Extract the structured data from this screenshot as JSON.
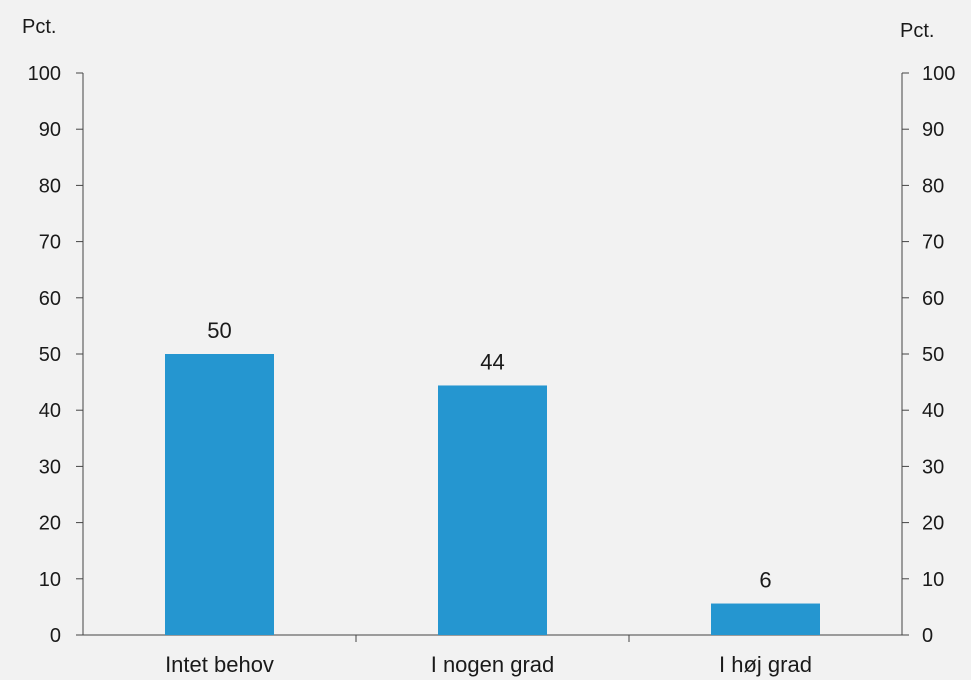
{
  "chart_data": {
    "type": "bar",
    "categories": [
      "Intet behov",
      "I nogen grad",
      "I høj grad"
    ],
    "values": [
      50,
      44.4,
      5.6
    ],
    "data_labels": [
      "50",
      "44",
      "6"
    ],
    "y_left_unit": "Pct.",
    "y_right_unit": "Pct.",
    "ylim": [
      0,
      100
    ],
    "y_ticks": [
      0,
      10,
      20,
      30,
      40,
      50,
      60,
      70,
      80,
      90,
      100
    ],
    "grid": false,
    "legend": "none",
    "bar_color": "#2596d0",
    "background_color": "#f2f2f2"
  }
}
